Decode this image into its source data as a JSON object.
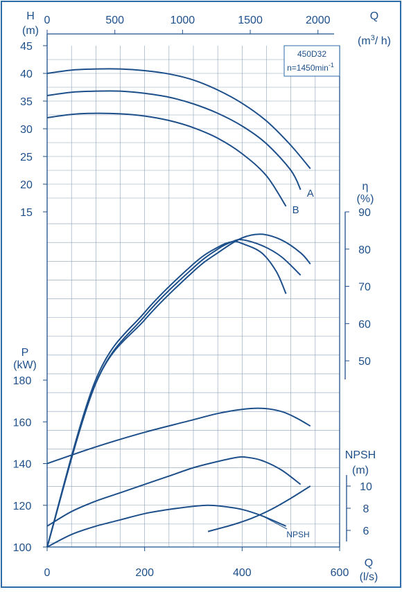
{
  "chart_data": {
    "type": "line",
    "box_label": {
      "model": "450D32",
      "speed": "n=1450min",
      "speed_exp": "-1"
    },
    "axes": {
      "x_bottom": {
        "name": "Q",
        "unit": "(l/s)",
        "range": [
          0,
          600
        ],
        "ticks": [
          "0",
          "200",
          "400",
          "600"
        ]
      },
      "x_top": {
        "name": "Q",
        "unit": "(m",
        "unit_sup": "3",
        "unit_end": "/ h)",
        "range": [
          0,
          2160
        ],
        "ticks": [
          "0",
          "500",
          "1000",
          "1500",
          "2000"
        ]
      },
      "head": {
        "name": "H",
        "unit": "(m)",
        "range": [
          15,
          45
        ],
        "ticks": [
          "45",
          "40",
          "35",
          "30",
          "25",
          "20",
          "15"
        ]
      },
      "efficiency": {
        "name": "η",
        "unit": "(%)",
        "range": [
          45,
          90
        ],
        "ticks": [
          "90",
          "80",
          "70",
          "60",
          "50"
        ]
      },
      "power": {
        "name": "P",
        "unit": "(kW)",
        "range": [
          100,
          180
        ],
        "ticks": [
          "180",
          "160",
          "140",
          "120",
          "100"
        ]
      },
      "npsh": {
        "name": "NPSH",
        "unit": "(m)",
        "range": [
          5,
          11
        ],
        "ticks": [
          "10",
          "8",
          "6"
        ]
      }
    },
    "series": [
      {
        "group": "head",
        "label": "",
        "x": [
          0,
          50,
          100,
          150,
          200,
          250,
          300,
          350,
          400,
          450,
          500,
          540
        ],
        "y": [
          40.0,
          40.6,
          40.8,
          40.8,
          40.5,
          39.9,
          38.8,
          37.0,
          34.6,
          31.4,
          27.0,
          22.8
        ]
      },
      {
        "group": "head",
        "label": "A",
        "x": [
          0,
          50,
          100,
          150,
          200,
          250,
          300,
          350,
          400,
          450,
          500,
          520
        ],
        "y": [
          36.0,
          36.6,
          36.8,
          36.8,
          36.4,
          35.7,
          34.5,
          32.8,
          30.5,
          27.3,
          22.5,
          19.0
        ]
      },
      {
        "group": "head",
        "label": "B",
        "x": [
          0,
          50,
          100,
          150,
          200,
          250,
          300,
          350,
          400,
          450,
          490
        ],
        "y": [
          32.0,
          32.6,
          32.8,
          32.7,
          32.3,
          31.5,
          30.2,
          28.3,
          25.5,
          21.5,
          16.0
        ]
      },
      {
        "group": "efficiency",
        "label": "",
        "x": [
          0,
          100,
          200,
          300,
          350,
          400,
          440,
          480,
          520,
          540
        ],
        "y": [
          0,
          44,
          61,
          74,
          79,
          83,
          84,
          82.5,
          79,
          76
        ]
      },
      {
        "group": "efficiency",
        "label": "",
        "x": [
          0,
          100,
          200,
          300,
          350,
          380,
          400,
          440,
          480,
          520
        ],
        "y": [
          0,
          44,
          62,
          75,
          80,
          82,
          82.5,
          81,
          78,
          73
        ]
      },
      {
        "group": "efficiency",
        "label": "",
        "x": [
          0,
          100,
          200,
          300,
          350,
          380,
          400,
          440,
          470,
          490
        ],
        "y": [
          0,
          45,
          63,
          76,
          80.5,
          82,
          81.5,
          79,
          74,
          68
        ]
      },
      {
        "group": "power",
        "label": "",
        "x": [
          0,
          100,
          200,
          300,
          350,
          400,
          440,
          480,
          510,
          540
        ],
        "y": [
          140,
          148,
          155,
          161,
          164,
          166,
          166.5,
          165,
          162,
          158
        ]
      },
      {
        "group": "power",
        "label": "",
        "x": [
          0,
          50,
          100,
          150,
          200,
          250,
          300,
          350,
          390,
          410,
          440,
          480,
          520
        ],
        "y": [
          110,
          117,
          122,
          126,
          130,
          134,
          138,
          141,
          143,
          143,
          141.5,
          137,
          130
        ]
      },
      {
        "group": "power",
        "label": "",
        "x": [
          0,
          50,
          100,
          150,
          200,
          250,
          300,
          330,
          360,
          400,
          440,
          490
        ],
        "y": [
          100,
          106,
          110,
          113,
          116,
          118,
          119.5,
          120,
          119.5,
          118,
          115,
          110
        ]
      },
      {
        "group": "npsh",
        "label": "NPSH",
        "x": [
          330,
          380,
          420,
          460,
          500,
          540
        ],
        "y": [
          5.9,
          6.5,
          7.1,
          7.9,
          8.9,
          10.0
        ]
      }
    ]
  }
}
